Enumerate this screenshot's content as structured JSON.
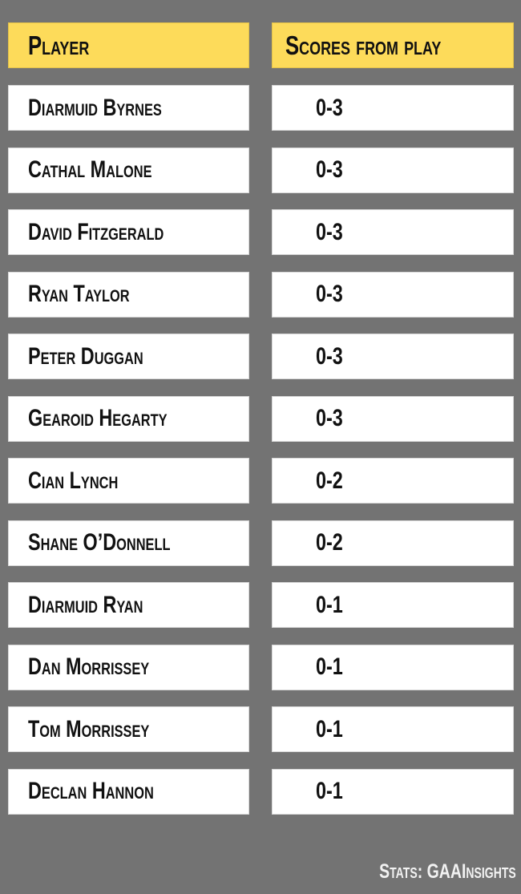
{
  "colors": {
    "background": "#737373",
    "header": "#fddb5a",
    "cell": "#ffffff"
  },
  "headers": {
    "player": "Player",
    "scores": "Scores from play"
  },
  "rows": [
    {
      "player": "Diarmuid Byrnes",
      "score": "0-3"
    },
    {
      "player": "Cathal Malone",
      "score": "0-3"
    },
    {
      "player": "David Fitzgerald",
      "score": "0-3"
    },
    {
      "player": "Ryan Taylor",
      "score": "0-3"
    },
    {
      "player": "Peter Duggan",
      "score": "0-3"
    },
    {
      "player": "Gearoid Hegarty",
      "score": "0-3"
    },
    {
      "player": "Cian Lynch",
      "score": "0-2"
    },
    {
      "player": "Shane O’Donnell",
      "score": "0-2"
    },
    {
      "player": "Diarmuid Ryan",
      "score": "0-1"
    },
    {
      "player": "Dan Morrissey",
      "score": "0-1"
    },
    {
      "player": "Tom Morrissey",
      "score": "0-1"
    },
    {
      "player": "Declan Hannon",
      "score": "0-1"
    }
  ],
  "footer": "Stats: GAAInsights"
}
